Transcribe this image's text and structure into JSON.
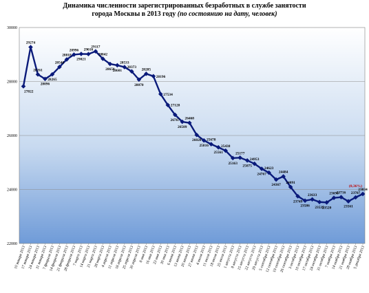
{
  "chart_data": {
    "type": "line",
    "title": "Динамика численности зарегистрированных безработных в службе занятости",
    "subtitle_main": "города Москвы в 2013 году",
    "subtitle_note": "(по состоянию на дату, человек)",
    "ylim": [
      22000,
      30000
    ],
    "yticks": [
      22000,
      24000,
      26000,
      28000,
      30000
    ],
    "grid": true,
    "legend": "none",
    "line_color": "#0a1a7a",
    "categories": [
      "10 января 2013",
      "17 января 2013",
      "24 января 2013",
      "31 января 2013",
      "7 февраля 2013",
      "14 февраля 2013",
      "21 февраля 2013",
      "28 февраля 2013",
      "7 марта 2013",
      "14 марта 2013",
      "21 марта 2013",
      "28 марта 2013",
      "4 апреля 2013",
      "11 апреля 2013",
      "18 апреля 2013",
      "25 апреля 2013",
      "30 апреля 2013",
      "8 мая 2013",
      "16 мая 2013",
      "23 мая 2013",
      "30 мая 2013",
      "6 июня 2013",
      "13 июня 2013",
      "20 июня 2013",
      "27 июня 2013",
      "4 июля 2013",
      "11 июля 2013",
      "18 июля 2013",
      "25 июля 2013",
      "1 августа 2013",
      "8 августа 2013",
      "15 августа 2013",
      "22 августа 2013",
      "29 августа 2013",
      "5 сентября 2013",
      "12 сентября 2013",
      "19 сентября 2013",
      "26 сентября 2013",
      "3 октября 2013",
      "10 октября 2013",
      "17 октября 2013",
      "24 октября 2013",
      "31 октября 2013",
      "7 ноября 2013",
      "14 ноября 2013",
      "21 ноября 2013",
      "28 ноября 2013",
      "5 декабря 2013"
    ],
    "values": [
      27822,
      29274,
      28261,
      28096,
      28265,
      28540,
      28818,
      28996,
      29021,
      29016,
      29117,
      28842,
      28650,
      28601,
      28533,
      28373,
      28070,
      28285,
      28196,
      27534,
      27128,
      26767,
      26509,
      26468,
      26020,
      25816,
      25678,
      25561,
      25438,
      25163,
      25177,
      25075,
      24953,
      24767,
      24623,
      24367,
      24484,
      24091,
      23749,
      23586,
      23633,
      23535,
      23520,
      23690,
      23716,
      23561,
      23707,
      23834
    ],
    "label_positions": [
      "below",
      "above",
      "above",
      "below",
      "below",
      "above",
      "above",
      "above",
      "below",
      "above",
      "above",
      "above",
      "below",
      "below",
      "above",
      "above",
      "below",
      "above",
      "right",
      "right",
      "right",
      "below",
      "below",
      "above",
      "below",
      "below",
      "above",
      "below",
      "above",
      "below",
      "above",
      "below",
      "above",
      "below",
      "above",
      "below",
      "above",
      "above",
      "below",
      "below",
      "above",
      "below",
      "below",
      "above",
      "above",
      "below",
      "above",
      "above"
    ],
    "annotation": "(0,36%)"
  }
}
